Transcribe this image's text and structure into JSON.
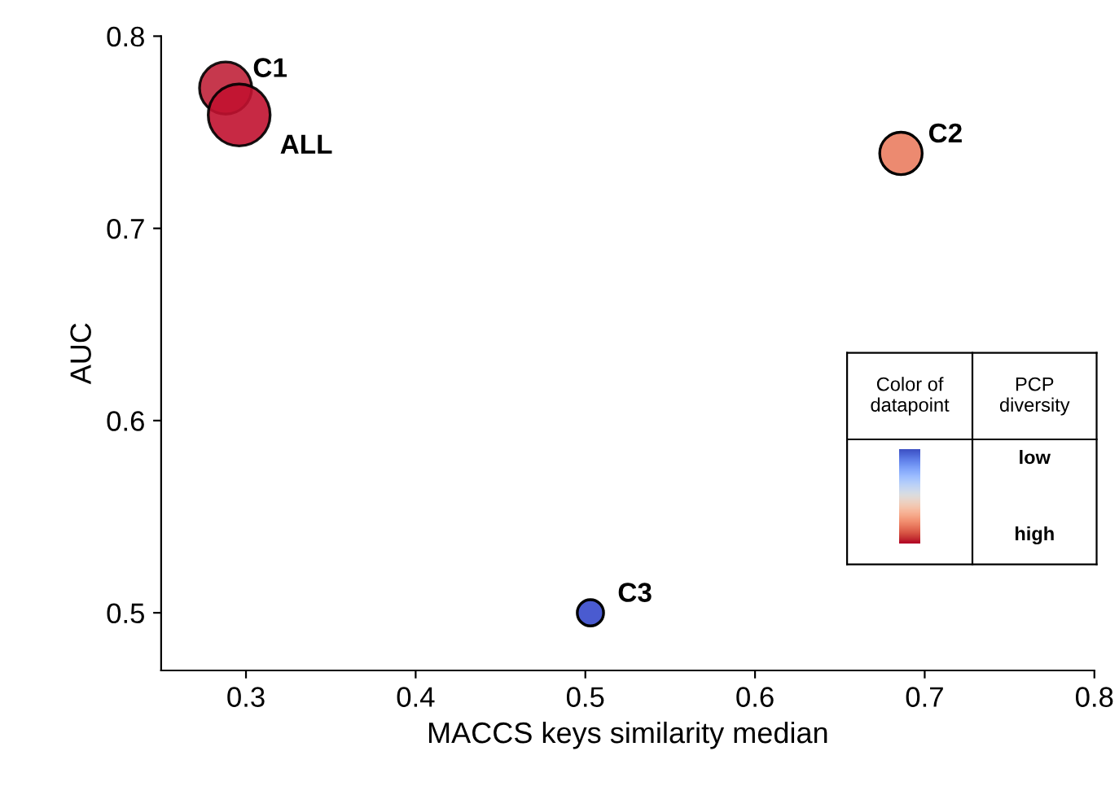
{
  "chart_data": {
    "type": "bubble",
    "xlabel": "MACCS keys similarity median",
    "ylabel": "AUC",
    "x": [
      0.288,
      0.296,
      0.686,
      0.503
    ],
    "values": [
      0.773,
      0.759,
      0.739,
      0.5
    ],
    "sizes": [
      0.71,
      1,
      0.47,
      0.18
    ],
    "colors": [
      "#c0223a",
      "#c11230",
      "#ec8a70",
      "#4a5bd0"
    ],
    "xlim": [
      0.25,
      0.8
    ],
    "ylim": [
      0.47,
      0.8
    ],
    "xticks": [
      0.3,
      0.4,
      0.5,
      0.6,
      0.7,
      0.8
    ],
    "yticks": [
      0.5,
      0.6,
      0.7,
      0.8
    ],
    "grid": false,
    "legend": false,
    "marker": "circle",
    "annotations": [
      {
        "text": "C1",
        "x": 0.288,
        "y": 0.773
      },
      {
        "text": "ALL",
        "x": 0.296,
        "y": 0.759
      },
      {
        "text": "C2",
        "x": 0.686,
        "y": 0.739
      },
      {
        "text": "C3",
        "x": 0.503,
        "y": 0.5
      },
      "Color of\ndatapoint",
      "PCP\ndiversity",
      "low",
      "high"
    ]
  }
}
